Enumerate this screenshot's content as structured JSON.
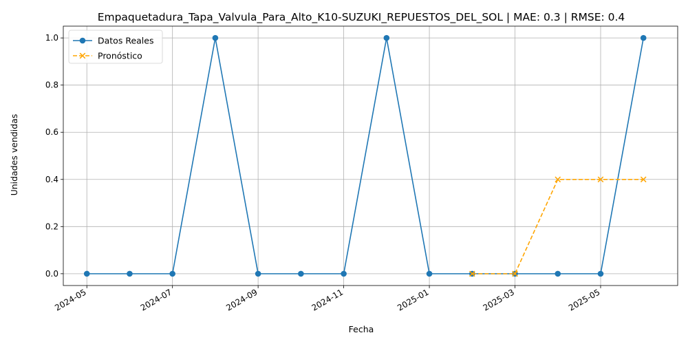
{
  "chart_data": {
    "type": "line",
    "title": "Empaquetadura_Tapa_Valvula_Para_Alto_K10-SUZUKI_REPUESTOS_DEL_SOL | MAE: 0.3 | RMSE: 0.4",
    "xlabel": "Fecha",
    "ylabel": "Unidades vendidas",
    "ylim": [
      -0.05,
      1.05
    ],
    "y_ticks": [
      "0.0",
      "0.2",
      "0.4",
      "0.6",
      "0.8",
      "1.0"
    ],
    "x_ticks": [
      "2024-05",
      "2024-07",
      "2024-09",
      "2024-11",
      "2025-01",
      "2025-03",
      "2025-05"
    ],
    "x_range": [
      "2024-04",
      "2025-07"
    ],
    "grid": true,
    "legend_position": "top-left",
    "series": [
      {
        "name": "Datos Reales",
        "color": "#1f77b4",
        "marker": "circle",
        "line_style": "solid",
        "x": [
          "2024-05",
          "2024-06",
          "2024-07",
          "2024-08",
          "2024-09",
          "2024-10",
          "2024-11",
          "2024-12",
          "2025-01",
          "2025-02",
          "2025-03",
          "2025-04",
          "2025-05",
          "2025-06"
        ],
        "values": [
          0,
          0,
          0,
          1,
          0,
          0,
          0,
          1,
          0,
          0,
          0,
          0,
          0,
          1
        ]
      },
      {
        "name": "Pronóstico",
        "color": "#ffa500",
        "marker": "x",
        "line_style": "dashed",
        "x": [
          "2025-02",
          "2025-03",
          "2025-04",
          "2025-05",
          "2025-06"
        ],
        "values": [
          0,
          0,
          0.4,
          0.4,
          0.4
        ]
      }
    ]
  }
}
